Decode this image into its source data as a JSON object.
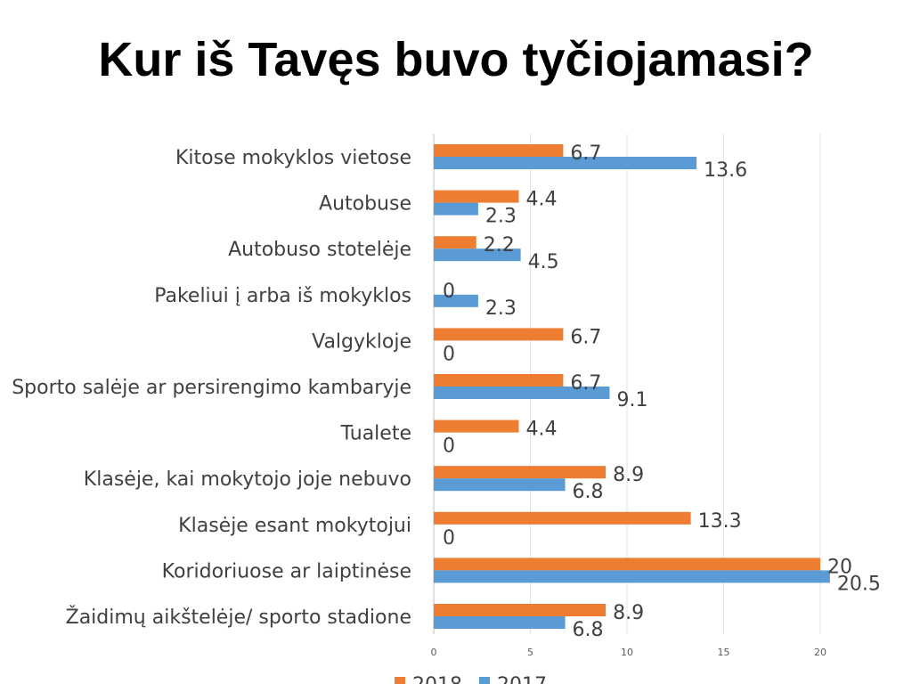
{
  "chart_data": {
    "type": "bar",
    "orientation": "horizontal",
    "title": "Kur iš Tavęs buvo tyčiojamasi?",
    "categories": [
      "Kitose mokyklos vietose",
      "Autobuse",
      "Autobuso stotelėje",
      "Pakeliui į arba iš mokyklos",
      "Valgykloje",
      "Sporto salėje ar persirengimo kambaryje",
      "Tualete",
      "Klasėje, kai mokytojo joje nebuvo",
      "Klasėje esant mokytojui",
      "Koridoriuose ar laiptinėse",
      "Žaidimų aikštelėje/ sporto stadione"
    ],
    "series": [
      {
        "name": "2018",
        "color": "#ED7D31",
        "values": [
          6.7,
          4.4,
          2.2,
          0,
          6.7,
          6.7,
          4.4,
          8.9,
          13.3,
          20,
          8.9
        ]
      },
      {
        "name": "2017",
        "color": "#5B9BD5",
        "values": [
          13.6,
          2.3,
          4.5,
          2.3,
          0,
          9.1,
          0,
          6.8,
          0,
          20.5,
          6.8
        ]
      }
    ],
    "value_labels": [
      [
        "6.7",
        "13.6"
      ],
      [
        "4.4",
        "2.3"
      ],
      [
        "2.2",
        "4.5"
      ],
      [
        "0",
        "2.3"
      ],
      [
        "6.7",
        "0"
      ],
      [
        "6.7",
        "9.1"
      ],
      [
        "4.4",
        "0"
      ],
      [
        "8.9",
        "6.8"
      ],
      [
        "13.3",
        "0"
      ],
      [
        "20",
        "20.5"
      ],
      [
        "8.9",
        "6.8"
      ]
    ],
    "xlim": [
      0,
      25
    ],
    "xticks": [
      "0",
      "5",
      "10",
      "15",
      "20"
    ],
    "grid": "vertical",
    "legend": "bottom"
  }
}
